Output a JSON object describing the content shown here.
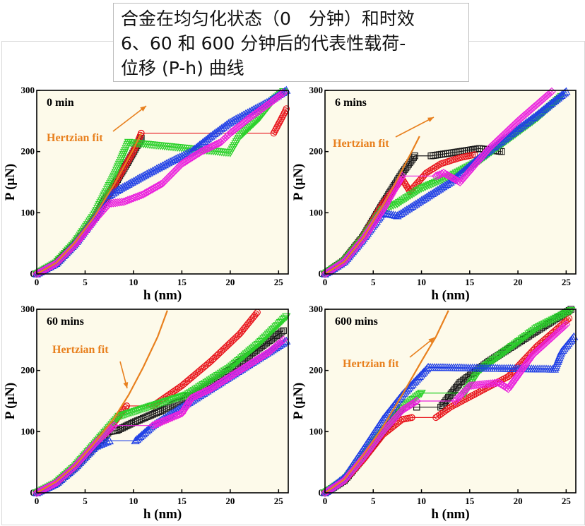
{
  "caption": "合金在均匀化状态（0　分钟）和时效\n6、60 和 600 分钟后的代表性载荷-\n位移 (P-h) 曲线",
  "colors": {
    "black": "#1a1a1a",
    "red": "#e8141b",
    "green": "#2bd12b",
    "blue": "#1f3fe6",
    "magenta": "#ea22dd",
    "fit": "#e8801e",
    "background_tint": "#fdfaea"
  },
  "chart_data": [
    {
      "type": "line",
      "panel_label": "0 min",
      "xlabel": "h (nm)",
      "ylabel": "P (μN)",
      "xlim": [
        0,
        26
      ],
      "ylim": [
        0,
        300
      ],
      "xticks": [
        0,
        5,
        10,
        15,
        20,
        25
      ],
      "yticks": [
        0,
        100,
        200,
        300
      ],
      "fit_label": "Hertzian fit",
      "fit_curve": {
        "x": [
          0,
          2,
          4,
          6,
          8,
          9,
          10,
          10.8
        ],
        "y": [
          0,
          18,
          52,
          95,
          146,
          175,
          204,
          230
        ]
      },
      "series": [
        {
          "color": "black",
          "marker": "square",
          "x": [
            0,
            2,
            4,
            6,
            8,
            9.5,
            10.8
          ],
          "y": [
            0,
            17,
            50,
            92,
            145,
            185,
            222
          ]
        },
        {
          "color": "red",
          "marker": "circle",
          "x": [
            0,
            2,
            4,
            6,
            8,
            10,
            10.8,
            10.8,
            24.5,
            25.0,
            25.5,
            25.8
          ],
          "y": [
            0,
            17,
            50,
            92,
            145,
            200,
            230,
            230,
            230,
            245,
            260,
            270
          ]
        },
        {
          "color": "green",
          "marker": "triangle-down",
          "x": [
            0,
            2,
            4,
            6,
            8,
            9.5,
            9.5,
            20.0,
            21,
            23,
            24.5,
            25.5
          ],
          "y": [
            0,
            18,
            52,
            98,
            160,
            215,
            215,
            198,
            225,
            255,
            285,
            298
          ]
        },
        {
          "color": "blue",
          "marker": "triangle-up",
          "x": [
            0,
            2,
            4,
            6,
            7.5,
            8.5,
            8.5,
            11,
            14,
            16,
            18,
            20,
            22,
            24,
            25.8
          ],
          "y": [
            0,
            17,
            50,
            92,
            128,
            138,
            138,
            160,
            185,
            200,
            225,
            248,
            265,
            282,
            300
          ]
        },
        {
          "color": "magenta",
          "marker": "diamond",
          "x": [
            0,
            2,
            4,
            6,
            7.5,
            9,
            11,
            13,
            15,
            17,
            19,
            20,
            22,
            24,
            25.5
          ],
          "y": [
            0,
            17,
            48,
            88,
            115,
            118,
            130,
            148,
            180,
            200,
            215,
            230,
            255,
            278,
            296
          ]
        }
      ]
    },
    {
      "type": "line",
      "panel_label": "6 mins",
      "xlabel": "h (nm)",
      "ylabel": "P (μN)",
      "xlim": [
        0,
        26
      ],
      "ylim": [
        0,
        300
      ],
      "xticks": [
        0,
        5,
        10,
        15,
        20,
        25
      ],
      "yticks": [
        0,
        100,
        200,
        300
      ],
      "fit_label": "Hertzian fit",
      "fit_curve": {
        "x": [
          0,
          2,
          4,
          6,
          7,
          8,
          9,
          9.8
        ],
        "y": [
          0,
          20,
          60,
          112,
          140,
          170,
          200,
          225
        ]
      },
      "series": [
        {
          "color": "black",
          "marker": "square",
          "x": [
            0,
            2,
            4,
            6,
            8,
            9.3,
            9.3,
            11.0,
            14,
            16,
            18.3
          ],
          "y": [
            0,
            22,
            62,
            115,
            165,
            193,
            193,
            193,
            200,
            205,
            200
          ]
        },
        {
          "color": "red",
          "marker": "circle",
          "x": [
            0,
            2,
            4,
            6,
            8,
            8.8,
            8.8,
            10.5,
            12,
            14,
            15.5
          ],
          "y": [
            0,
            22,
            62,
            115,
            155,
            135,
            135,
            165,
            180,
            190,
            195
          ]
        },
        {
          "color": "green",
          "marker": "triangle-down",
          "x": [
            0,
            2,
            4,
            6,
            7.5,
            7.5,
            10,
            13,
            16,
            19,
            22,
            24.5
          ],
          "y": [
            0,
            20,
            58,
            105,
            115,
            115,
            140,
            160,
            185,
            220,
            255,
            290
          ]
        },
        {
          "color": "blue",
          "marker": "triangle-up",
          "x": [
            0,
            2,
            4,
            6,
            7.5,
            7.5,
            10,
            13,
            16,
            19,
            22,
            25
          ],
          "y": [
            0,
            20,
            58,
            100,
            95,
            95,
            120,
            150,
            190,
            225,
            260,
            298
          ]
        },
        {
          "color": "magenta",
          "marker": "diamond",
          "x": [
            0,
            2,
            4,
            6,
            8.0,
            8.0,
            11.5,
            12.3,
            14,
            17,
            20,
            23.5
          ],
          "y": [
            0,
            20,
            58,
            105,
            160,
            160,
            160,
            165,
            150,
            205,
            250,
            298
          ]
        }
      ]
    },
    {
      "type": "line",
      "panel_label": "60 mins",
      "xlabel": "h (nm)",
      "ylabel": "P (μN)",
      "xlim": [
        0,
        26
      ],
      "ylim": [
        0,
        300
      ],
      "xticks": [
        0,
        5,
        10,
        15,
        20,
        25
      ],
      "yticks": [
        0,
        100,
        200,
        300
      ],
      "fit_label": "Hertzian fit",
      "fit_curve": {
        "x": [
          0,
          2,
          4,
          6,
          8,
          9.5,
          11,
          12.5,
          13.5
        ],
        "y": [
          0,
          18,
          45,
          82,
          122,
          160,
          205,
          255,
          298
        ]
      },
      "series": [
        {
          "color": "black",
          "marker": "square",
          "x": [
            0,
            2,
            4,
            6,
            7.5,
            8.3,
            8.3,
            10,
            13,
            16,
            19,
            22,
            25.5
          ],
          "y": [
            0,
            15,
            42,
            75,
            100,
            102,
            102,
            115,
            135,
            160,
            190,
            225,
            265
          ]
        },
        {
          "color": "red",
          "marker": "circle",
          "x": [
            0,
            2,
            4,
            6,
            8,
            9.3,
            9.3,
            12,
            15,
            18,
            21,
            22.8
          ],
          "y": [
            0,
            16,
            44,
            80,
            115,
            142,
            142,
            142,
            175,
            215,
            260,
            295
          ]
        },
        {
          "color": "green",
          "marker": "triangle-down",
          "x": [
            0,
            2,
            4,
            6,
            8.5,
            8.5,
            15.5,
            17,
            20,
            23,
            25.8
          ],
          "y": [
            0,
            16,
            44,
            80,
            125,
            125,
            160,
            175,
            205,
            245,
            288
          ]
        },
        {
          "color": "blue",
          "marker": "triangle-up",
          "x": [
            0,
            2,
            4,
            6,
            7.5,
            7.5,
            10.2,
            12,
            15,
            18,
            21,
            24,
            25.8
          ],
          "y": [
            0,
            15,
            42,
            75,
            85,
            85,
            85,
            110,
            140,
            170,
            200,
            230,
            248
          ]
        },
        {
          "color": "magenta",
          "marker": "diamond",
          "x": [
            0,
            2,
            4,
            6,
            8,
            8,
            12,
            15,
            16,
            18,
            21,
            24,
            25.5
          ],
          "y": [
            0,
            16,
            44,
            80,
            110,
            110,
            110,
            130,
            155,
            170,
            200,
            230,
            250
          ]
        }
      ]
    },
    {
      "type": "line",
      "panel_label": "600 mins",
      "xlabel": "h (nm)",
      "ylabel": "P (μN)",
      "xlim": [
        0,
        26
      ],
      "ylim": [
        0,
        300
      ],
      "xticks": [
        0,
        5,
        10,
        15,
        20,
        25
      ],
      "yticks": [
        0,
        100,
        200,
        300
      ],
      "fit_label": "Hertzian fit",
      "fit_curve": {
        "x": [
          0,
          2,
          4,
          6,
          8,
          10,
          11.5,
          12.8
        ],
        "y": [
          0,
          22,
          62,
          108,
          160,
          215,
          255,
          298
        ]
      },
      "series": [
        {
          "color": "black",
          "marker": "square",
          "x": [
            0,
            2,
            4,
            6,
            8,
            9.5,
            9.5,
            12.0,
            14,
            17,
            20,
            23,
            25.5
          ],
          "y": [
            0,
            20,
            58,
            100,
            140,
            140,
            140,
            140,
            180,
            215,
            245,
            275,
            300
          ]
        },
        {
          "color": "red",
          "marker": "circle",
          "x": [
            0,
            2,
            4,
            6,
            8,
            9.0,
            9.0,
            11.5,
            13,
            16,
            19,
            22,
            25.3
          ],
          "y": [
            0,
            20,
            55,
            95,
            120,
            123,
            123,
            123,
            140,
            165,
            190,
            240,
            285
          ]
        },
        {
          "color": "green",
          "marker": "triangle-down",
          "x": [
            0,
            2,
            4,
            6,
            8,
            10,
            10,
            14.5,
            16,
            19,
            22,
            25.5
          ],
          "y": [
            0,
            20,
            58,
            100,
            140,
            163,
            163,
            163,
            200,
            235,
            270,
            298
          ]
        },
        {
          "color": "blue",
          "marker": "triangle-up",
          "x": [
            0,
            2,
            4,
            6,
            8,
            10.7,
            10.7,
            23.8,
            24.5,
            25.8
          ],
          "y": [
            0,
            25,
            72,
            120,
            160,
            205,
            205,
            202,
            230,
            255
          ]
        },
        {
          "color": "magenta",
          "marker": "diamond",
          "x": [
            0,
            2,
            4,
            6,
            8,
            9.5,
            9.5,
            13.5,
            15,
            18,
            19,
            21.5,
            25.0
          ],
          "y": [
            0,
            20,
            58,
            100,
            135,
            150,
            150,
            150,
            175,
            180,
            170,
            225,
            275
          ]
        }
      ]
    }
  ]
}
